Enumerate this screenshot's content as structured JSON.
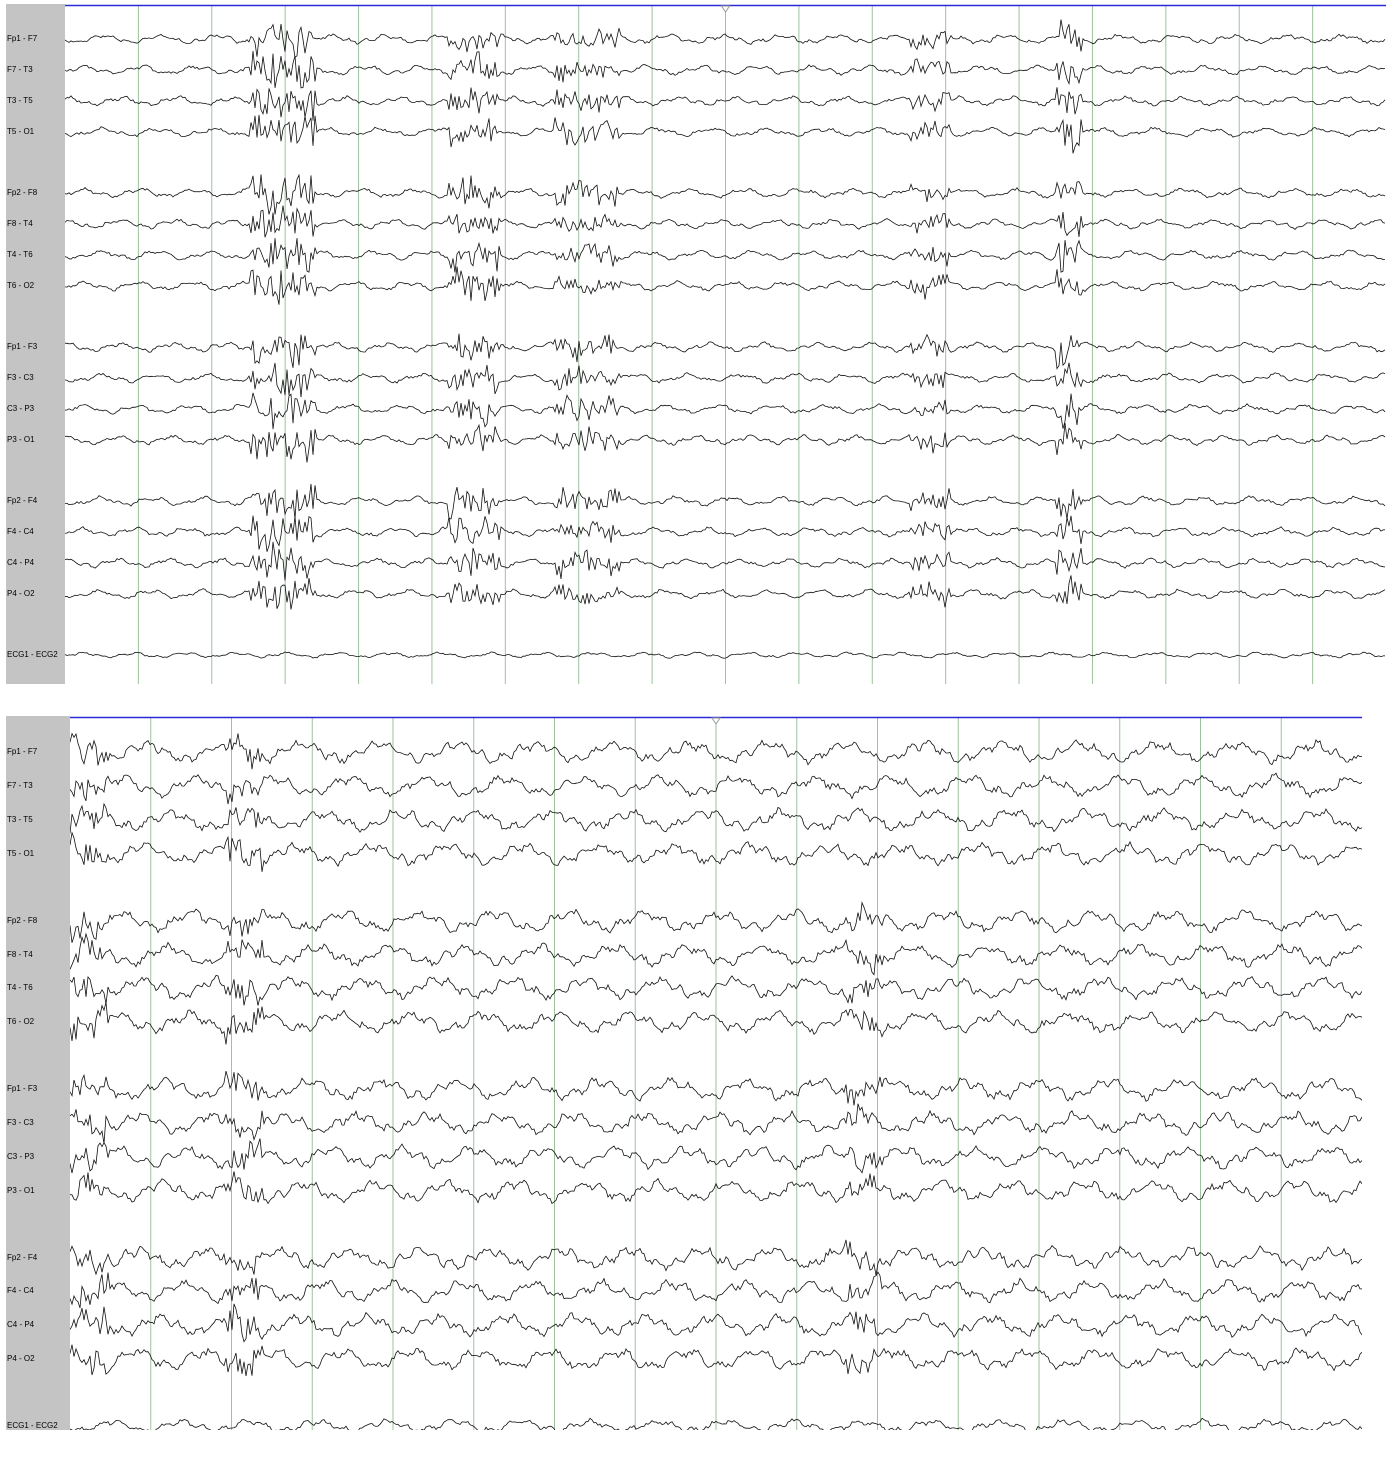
{
  "colors": {
    "label_column": "#c4c4c4",
    "grid_line": "#9dc29d",
    "top_bar": "#2a2ad6",
    "trace": "#111111",
    "time_marker": "#9a9a9a"
  },
  "icons": {
    "time_marker": "triangle-down-icon"
  },
  "panels": [
    {
      "id": "top",
      "channels": [
        "Fp1 - F7",
        "F7 - T3",
        "T3 - T5",
        "T5 - O1",
        "Fp2 - F8",
        "F8 - T4",
        "T4 - T6",
        "T6 - O2",
        "Fp1 - F3",
        "F3 - C3",
        "C3 - P3",
        "P3 - O1",
        "Fp2 - F4",
        "F4 - C4",
        "C4 - P4",
        "P4 - O2",
        "ECG1 - ECG2"
      ],
      "seconds_shown": 18,
      "wave_amplitude": 3,
      "bursts": [
        {
          "from": 0.14,
          "to": 0.19,
          "channels": "0-15",
          "gain": 7
        },
        {
          "from": 0.29,
          "to": 0.33,
          "channels": "0-15",
          "gain": 5.5
        },
        {
          "from": 0.37,
          "to": 0.42,
          "channels": "0-15",
          "gain": 4.5
        },
        {
          "from": 0.64,
          "to": 0.67,
          "channels": "0-15",
          "gain": 4
        },
        {
          "from": 0.75,
          "to": 0.77,
          "channels": "0-15",
          "gain": 6
        }
      ]
    },
    {
      "id": "bottom",
      "channels": [
        "Fp1 - F7",
        "F7 - T3",
        "T3 - T5",
        "T5 - O1",
        "Fp2 - F8",
        "F8 - T4",
        "T4 - T6",
        "T6 - O2",
        "Fp1 - F3",
        "F3 - C3",
        "C3 - P3",
        "P3 - O1",
        "Fp2 - F4",
        "F4 - C4",
        "C4 - P4",
        "P4 - O2",
        "ECG1 - ECG2"
      ],
      "seconds_shown": 16,
      "wave_amplitude": 7,
      "bursts": [
        {
          "from": 0.0,
          "to": 0.03,
          "channels": "0-15",
          "gain": 2.2
        },
        {
          "from": 0.12,
          "to": 0.15,
          "channels": "0-15",
          "gain": 2.2
        },
        {
          "from": 0.6,
          "to": 0.63,
          "channels": "4-15",
          "gain": 1.8
        }
      ]
    }
  ]
}
